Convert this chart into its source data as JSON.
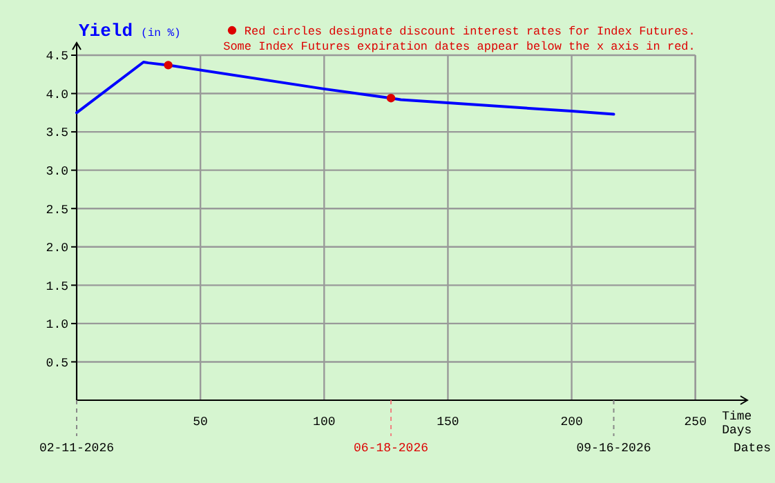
{
  "chart_data": {
    "type": "line",
    "title": "Yield",
    "subtitle": "(in %)",
    "xlabel": "Time Days",
    "x2label": "Dates",
    "xlim": [
      0,
      271
    ],
    "xticks": [
      {
        "value": 0,
        "label": null
      },
      50,
      100,
      150,
      200,
      250
    ],
    "x2lim": [
      "2026-02-11",
      "2026-11-09"
    ],
    "x2ticks": [
      {
        "value": "2026-02-11",
        "label": "02-11-2026"
      },
      {
        "value": "2026-06-18",
        "label": "06-18-2026"
      },
      {
        "value": "2026-09-16",
        "label": "09-16-2026"
      }
    ],
    "ylim": [
      0,
      4.5
    ],
    "yticks": [
      0.5,
      {
        "value": 1,
        "label": "1.0"
      },
      1.5,
      {
        "value": 2,
        "label": "2.0"
      },
      2.5,
      {
        "value": 3,
        "label": "3.0"
      },
      3.5,
      {
        "value": 4,
        "label": "4.0"
      },
      4.5
    ],
    "grid": true,
    "legend": "top right",
    "series": [
      {
        "color": "#0000ff",
        "x": [
          0,
          27,
          29,
          37,
          100,
          127,
          131,
          150,
          200,
          217
        ],
        "values": [
          3.75,
          4.41,
          4.4,
          4.37,
          4.06,
          3.94,
          3.92,
          3.88,
          3.77,
          3.73
        ]
      },
      {
        "type": "scatter",
        "name": "Red circles designate discount interest rates for Index Futures.",
        "color": "#dd0000",
        "marker": "circle",
        "x": [
          37,
          127
        ],
        "values": [
          4.37,
          3.94
        ]
      }
    ],
    "annotations": [
      "Some Index Futures expiration dates appear below the x axis in red."
    ]
  }
}
